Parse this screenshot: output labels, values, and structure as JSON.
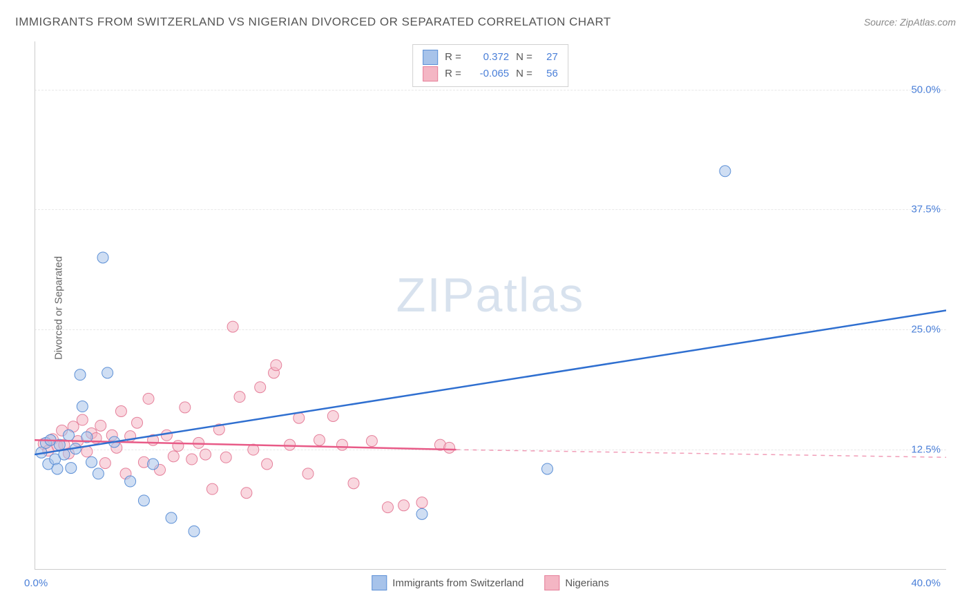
{
  "title": "IMMIGRANTS FROM SWITZERLAND VS NIGERIAN DIVORCED OR SEPARATED CORRELATION CHART",
  "source": "Source: ZipAtlas.com",
  "y_axis_label": "Divorced or Separated",
  "watermark": {
    "bold": "ZIP",
    "light": "atlas"
  },
  "chart": {
    "type": "scatter",
    "xlim": [
      0,
      40
    ],
    "ylim": [
      0,
      55
    ],
    "x_ticks": [
      {
        "value": 0,
        "label": "0.0%"
      },
      {
        "value": 40,
        "label": "40.0%"
      }
    ],
    "y_ticks": [
      {
        "value": 12.5,
        "label": "12.5%"
      },
      {
        "value": 25.0,
        "label": "25.0%"
      },
      {
        "value": 37.5,
        "label": "37.5%"
      },
      {
        "value": 50.0,
        "label": "50.0%"
      }
    ],
    "grid_y_dashed": [
      12.5,
      25.0,
      37.5,
      50.0
    ],
    "grid_color": "#e8e8e8",
    "background": "#ffffff",
    "marker_radius": 8,
    "marker_stroke_width": 1,
    "line_width": 2.5,
    "series_a": {
      "name": "Immigrants from Switzerland",
      "fill": "#a7c3ea",
      "fill_opacity": 0.55,
      "stroke": "#5b8fd6",
      "line_color": "#2f6fd0",
      "R": "0.372",
      "N": "27",
      "trend_solid": {
        "x1": 0,
        "y1": 12.0,
        "x2": 40,
        "y2": 27.0
      },
      "trend_dash_from_x": 0,
      "points": [
        {
          "x": 0.3,
          "y": 12.2
        },
        {
          "x": 0.5,
          "y": 13.2
        },
        {
          "x": 0.6,
          "y": 11.0
        },
        {
          "x": 0.7,
          "y": 13.5
        },
        {
          "x": 0.9,
          "y": 11.5
        },
        {
          "x": 1.0,
          "y": 10.5
        },
        {
          "x": 1.1,
          "y": 13.0
        },
        {
          "x": 1.3,
          "y": 12.0
        },
        {
          "x": 1.5,
          "y": 14.0
        },
        {
          "x": 1.6,
          "y": 10.6
        },
        {
          "x": 1.8,
          "y": 12.6
        },
        {
          "x": 2.0,
          "y": 20.3
        },
        {
          "x": 2.1,
          "y": 17.0
        },
        {
          "x": 2.3,
          "y": 13.8
        },
        {
          "x": 2.5,
          "y": 11.2
        },
        {
          "x": 2.8,
          "y": 10.0
        },
        {
          "x": 3.2,
          "y": 20.5
        },
        {
          "x": 3.0,
          "y": 32.5
        },
        {
          "x": 3.5,
          "y": 13.3
        },
        {
          "x": 4.2,
          "y": 9.2
        },
        {
          "x": 4.8,
          "y": 7.2
        },
        {
          "x": 5.2,
          "y": 11.0
        },
        {
          "x": 6.0,
          "y": 5.4
        },
        {
          "x": 7.0,
          "y": 4.0
        },
        {
          "x": 17.0,
          "y": 5.8
        },
        {
          "x": 22.5,
          "y": 10.5
        },
        {
          "x": 30.3,
          "y": 41.5
        }
      ]
    },
    "series_b": {
      "name": "Nigerians",
      "fill": "#f4b6c4",
      "fill_opacity": 0.55,
      "stroke": "#e57f9a",
      "line_color": "#e85a87",
      "R": "-0.065",
      "N": "56",
      "trend_solid": {
        "x1": 0,
        "y1": 13.5,
        "x2": 18.5,
        "y2": 12.5
      },
      "trend_dashed": {
        "x1": 18.5,
        "y1": 12.5,
        "x2": 40,
        "y2": 11.7
      },
      "points": [
        {
          "x": 0.4,
          "y": 13.1
        },
        {
          "x": 0.6,
          "y": 12.4
        },
        {
          "x": 0.8,
          "y": 13.6
        },
        {
          "x": 1.0,
          "y": 12.9
        },
        {
          "x": 1.2,
          "y": 14.5
        },
        {
          "x": 1.3,
          "y": 13.0
        },
        {
          "x": 1.5,
          "y": 12.1
        },
        {
          "x": 1.7,
          "y": 14.9
        },
        {
          "x": 1.9,
          "y": 13.4
        },
        {
          "x": 2.1,
          "y": 15.6
        },
        {
          "x": 2.3,
          "y": 12.3
        },
        {
          "x": 2.5,
          "y": 14.2
        },
        {
          "x": 2.7,
          "y": 13.7
        },
        {
          "x": 2.9,
          "y": 15.0
        },
        {
          "x": 3.1,
          "y": 11.1
        },
        {
          "x": 3.4,
          "y": 14.0
        },
        {
          "x": 3.6,
          "y": 12.7
        },
        {
          "x": 3.8,
          "y": 16.5
        },
        {
          "x": 4.0,
          "y": 10.0
        },
        {
          "x": 4.2,
          "y": 13.9
        },
        {
          "x": 4.5,
          "y": 15.3
        },
        {
          "x": 4.8,
          "y": 11.2
        },
        {
          "x": 5.0,
          "y": 17.8
        },
        {
          "x": 5.2,
          "y": 13.5
        },
        {
          "x": 5.5,
          "y": 10.4
        },
        {
          "x": 5.8,
          "y": 14.0
        },
        {
          "x": 6.1,
          "y": 11.8
        },
        {
          "x": 6.3,
          "y": 12.9
        },
        {
          "x": 6.6,
          "y": 16.9
        },
        {
          "x": 6.9,
          "y": 11.5
        },
        {
          "x": 7.2,
          "y": 13.2
        },
        {
          "x": 7.5,
          "y": 12.0
        },
        {
          "x": 7.8,
          "y": 8.4
        },
        {
          "x": 8.1,
          "y": 14.6
        },
        {
          "x": 8.4,
          "y": 11.7
        },
        {
          "x": 8.7,
          "y": 25.3
        },
        {
          "x": 9.0,
          "y": 18.0
        },
        {
          "x": 9.3,
          "y": 8.0
        },
        {
          "x": 9.6,
          "y": 12.5
        },
        {
          "x": 9.9,
          "y": 19.0
        },
        {
          "x": 10.2,
          "y": 11.0
        },
        {
          "x": 10.5,
          "y": 20.5
        },
        {
          "x": 10.6,
          "y": 21.3
        },
        {
          "x": 11.2,
          "y": 13.0
        },
        {
          "x": 11.6,
          "y": 15.8
        },
        {
          "x": 12.0,
          "y": 10.0
        },
        {
          "x": 12.5,
          "y": 13.5
        },
        {
          "x": 13.1,
          "y": 16.0
        },
        {
          "x": 13.5,
          "y": 13.0
        },
        {
          "x": 14.0,
          "y": 9.0
        },
        {
          "x": 14.8,
          "y": 13.4
        },
        {
          "x": 15.5,
          "y": 6.5
        },
        {
          "x": 16.2,
          "y": 6.7
        },
        {
          "x": 17.0,
          "y": 7.0
        },
        {
          "x": 17.8,
          "y": 13.0
        },
        {
          "x": 18.2,
          "y": 12.7
        }
      ]
    }
  },
  "legend_top_labels": {
    "R": "R =",
    "N": "N ="
  },
  "legend_bottom": [
    {
      "swatch_fill": "#a7c3ea",
      "swatch_stroke": "#5b8fd6",
      "label": "Immigrants from Switzerland"
    },
    {
      "swatch_fill": "#f4b6c4",
      "swatch_stroke": "#e57f9a",
      "label": "Nigerians"
    }
  ]
}
